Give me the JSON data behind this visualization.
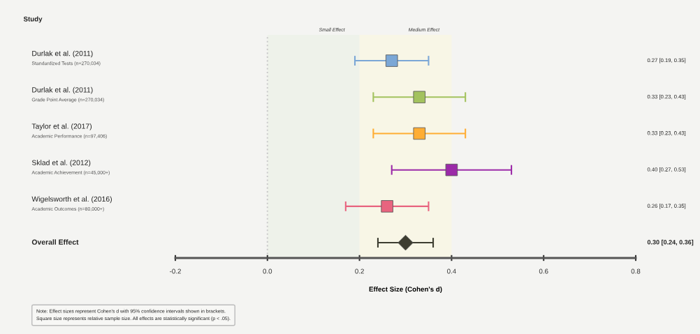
{
  "chart_data": {
    "type": "scatter",
    "orientation": "horizontal",
    "ylabel": "Study",
    "xlabel": "Effect Size (Cohen's d)",
    "categories": [
      "Durlak et al. (2011)\nStandardized Tests (n=270,034)",
      "Durlak et al. (2011)\nGrade Point Average (n=270,034)",
      "Taylor et al. (2017)\nAcademic Performance (n=97,406)",
      "Sklad et al. (2012)\nAcademic Achievement (n=45,000+)",
      "Wigelsworth et al. (2016)\nAcademic Outcomes (n=80,000+)",
      "Overall Effect"
    ],
    "series": [
      {
        "marker": "square",
        "colors": [
          "#7ba7d6",
          "#a3c25e",
          "#ffad33",
          "#9b2aa8",
          "#e8647f",
          null
        ],
        "values": [
          0.27,
          0.33,
          0.33,
          0.4,
          0.26,
          null
        ],
        "errors": [
          [
            0.19,
            0.35
          ],
          [
            0.23,
            0.43
          ],
          [
            0.23,
            0.43
          ],
          [
            0.27,
            0.53
          ],
          [
            0.17,
            0.35
          ],
          null
        ],
        "value_labels": [
          "0.27 [0.19, 0.35]",
          "0.33 [0.23, 0.43]",
          "0.33 [0.23, 0.43]",
          "0.40 [0.27, 0.53]",
          "0.26 [0.17, 0.35]",
          null
        ]
      },
      {
        "marker": "diamond",
        "color": "#3d3d30",
        "values": [
          null,
          null,
          null,
          null,
          null,
          0.3
        ],
        "errors": [
          null,
          null,
          null,
          null,
          null,
          [
            0.24,
            0.36
          ]
        ]
      }
    ],
    "xlim": [
      -0.2,
      0.8
    ],
    "xticks": [
      -0.2,
      {
        "value": 0,
        "label": "0.0"
      },
      0.2,
      0.4,
      0.6,
      0.8
    ],
    "ref_lines": [
      {
        "axis": "x",
        "value": 0,
        "label": null,
        "color": "#cccccc",
        "line_style": "dotted"
      }
    ],
    "bands": [
      {
        "axis": "x",
        "from": 0,
        "to": 0.2,
        "label": "Small Effect",
        "color": "#eef2ea"
      },
      {
        "axis": "x",
        "from": 0.2,
        "to": 0.4,
        "label": "Medium Effect",
        "color": "#f8f6e6"
      }
    ],
    "annotations": [
      "0.30 [0.24, 0.36]",
      "Note: Effect sizes represent Cohen's d with 95% confidence intervals shown in brackets.\nSquare size represents relative sample size. All effects are statistically significant (p < .05)."
    ],
    "legend": false,
    "grid": false
  }
}
